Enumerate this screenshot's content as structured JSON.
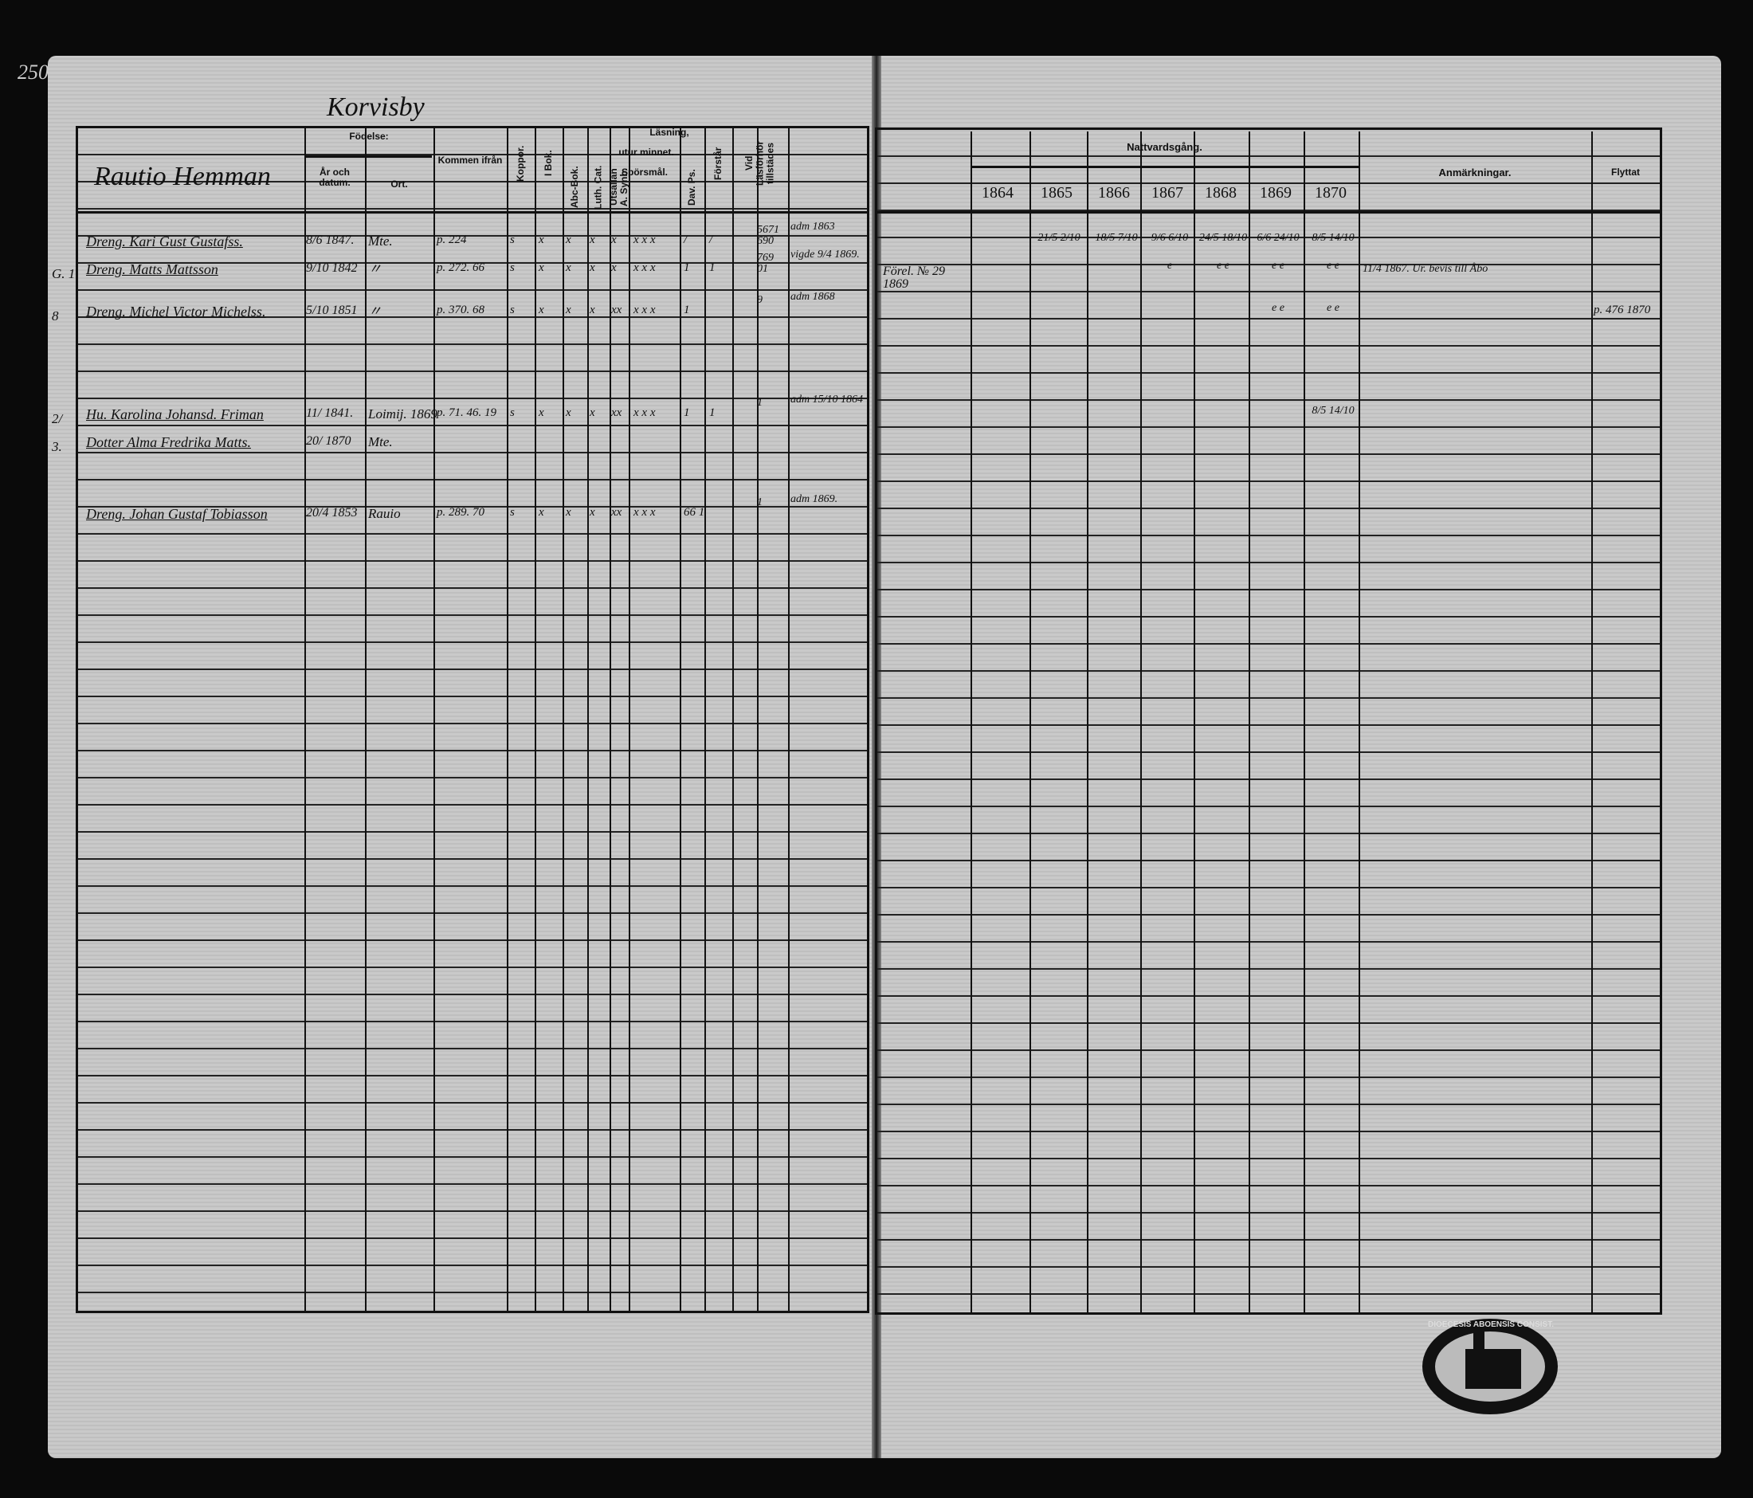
{
  "page_number": "250",
  "village": "Korvisby",
  "left_header": {
    "homestead": "Rautio Hemman",
    "fodelse": "Födelse:",
    "ar_och_datum": "År och datum.",
    "ort": "Ort.",
    "kommen_ifran": "Kommen ifrån",
    "koppor": "Koppor.",
    "i_bok": "I Bok.",
    "lasning": "Läsning,",
    "utur_minnet": "utur minnet.",
    "abc_bok": "Abc-Bok.",
    "luth_cat": "Luth. Cat.",
    "utsn_synb": "Utsällan A. Synb.",
    "sporsmal": "Spörsmål.",
    "dav_ps": "Dav. Ps.",
    "forstar": "Förstår",
    "vid_lasforhor": "Vid Läsförhör tillstädes"
  },
  "right_header": {
    "nattvardsgang": "Nattvardsgång.",
    "years": [
      "1864",
      "1865",
      "1866",
      "1867",
      "1868",
      "1869",
      "1870"
    ],
    "anmarkningar": "Anmärkningar.",
    "flyttat": "Flyttat"
  },
  "entries": [
    {
      "margin": "",
      "name": "Dreng. Kari Gust Gustafss.",
      "born": "8/6 1847.",
      "place": "Mte.",
      "from": "p. 224",
      "cols": [
        "s",
        "x",
        "x",
        "x",
        "x",
        "x x x",
        "/",
        "/"
      ],
      "attend": "5671 690",
      "note": "adm 1863",
      "prev": "",
      "communion": [
        "",
        "21/5 2/10",
        "18/5 7/10",
        "9/6 6/10",
        "24/5 18/10",
        "6/6 24/10",
        "8/5 14/10"
      ],
      "remark": "",
      "moved": ""
    },
    {
      "margin": "G. 1",
      "name": "Dreng. Matts Mattsson",
      "born": "9/10 1842",
      "place": "〃",
      "from": "p. 272. 66",
      "cols": [
        "s",
        "x",
        "x",
        "x",
        "x",
        "x x x",
        "1",
        "1"
      ],
      "attend": "769 01",
      "note": "vigde 9/4 1869.",
      "prev": "Förel. № 29 1869",
      "communion": [
        "",
        "",
        "",
        "e",
        "e e",
        "e e",
        "e e"
      ],
      "remark": "11/4 1867. Ur. bevis till Åbo",
      "moved": ""
    },
    {
      "margin": "8",
      "name": "Dreng. Michel Victor Michelss.",
      "born": "5/10 1851",
      "place": "〃",
      "from": "p. 370. 68",
      "cols": [
        "s",
        "x",
        "x",
        "x",
        "xx",
        "x x x",
        "1",
        ""
      ],
      "attend": "9",
      "note": "adm 1868",
      "prev": "",
      "communion": [
        "",
        "",
        "",
        "",
        "",
        "e e",
        "e e"
      ],
      "remark": "",
      "moved": "p. 476 1870"
    },
    {
      "margin": "2/",
      "name": "Hu. Karolina Johansd. Friman",
      "born": "11/ 1841.",
      "place": "Loimij. 1869",
      "from": "p. 71. 46. 19",
      "cols": [
        "s",
        "x",
        "x",
        "x",
        "xx",
        "x x x",
        "1",
        "1"
      ],
      "attend": "1",
      "note": "adm 15/10 1864",
      "prev": "",
      "communion": [
        "",
        "",
        "",
        "",
        "",
        "",
        "8/5 14/10"
      ],
      "remark": "",
      "moved": ""
    },
    {
      "margin": "3.",
      "name": "Dotter Alma Fredrika Matts.",
      "born": "20/ 1870",
      "place": "Mte.",
      "from": "",
      "cols": [
        "",
        "",
        "",
        "",
        "",
        "",
        "",
        ""
      ],
      "attend": "",
      "note": "",
      "prev": "",
      "communion": [
        "",
        "",
        "",
        "",
        "",
        "",
        ""
      ],
      "remark": "",
      "moved": ""
    },
    {
      "margin": "",
      "name": "Dreng. Johan Gustaf Tobiasson",
      "born": "20/4 1853",
      "place": "Rauio",
      "from": "p. 289. 70",
      "cols": [
        "s",
        "x",
        "x",
        "x",
        "xx",
        "x x x",
        "66 1",
        ""
      ],
      "attend": "1",
      "note": "adm 1869.",
      "prev": "",
      "communion": [
        "",
        "",
        "",
        "",
        "",
        "",
        ""
      ],
      "remark": "",
      "moved": ""
    }
  ],
  "stamp": "DIOECESIS ABOENSIS CONSIST."
}
